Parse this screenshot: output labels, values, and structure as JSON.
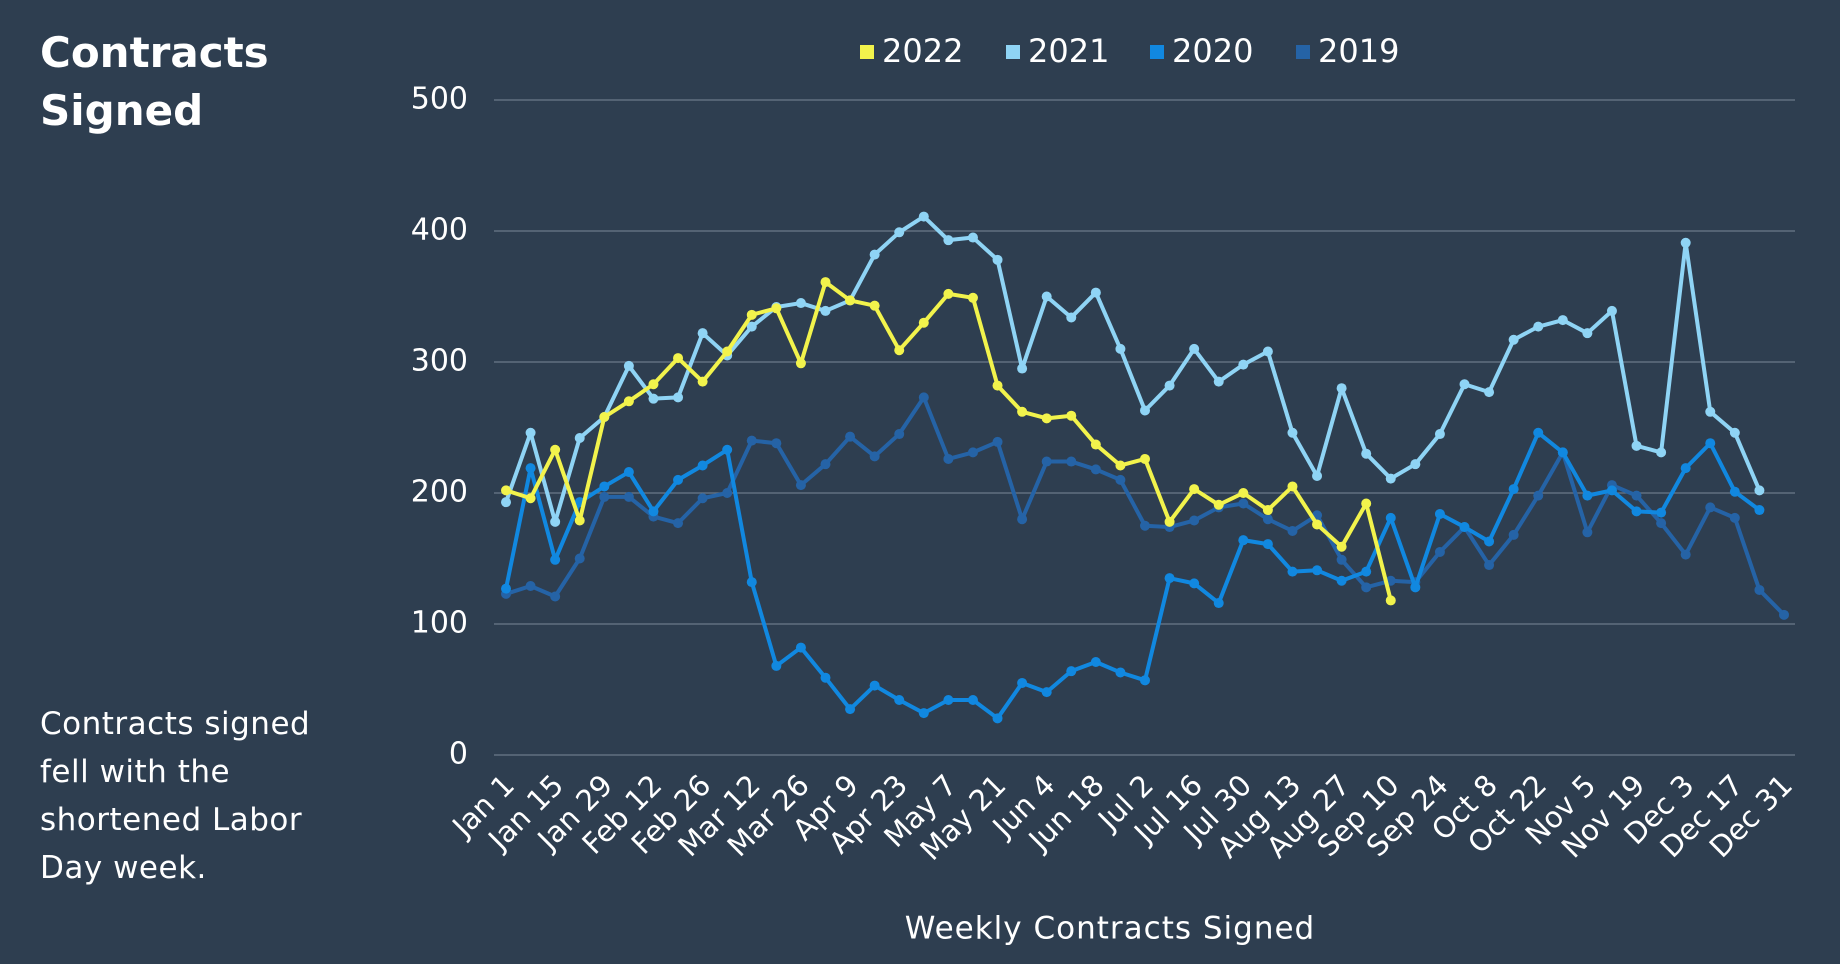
{
  "chart_data": {
    "type": "line",
    "title": "Contracts Signed",
    "annotation": "Contracts signed fell with the shortened Labor Day week.",
    "x_label": "Weekly Contracts Signed",
    "categories": [
      "Jan 1",
      null,
      "Jan 15",
      null,
      "Jan 29",
      null,
      "Feb 12",
      null,
      "Feb 26",
      null,
      "Mar 12",
      null,
      "Mar 26",
      null,
      "Apr 9",
      null,
      "Apr 23",
      null,
      "May 7",
      null,
      "May 21",
      null,
      "Jun 4",
      null,
      "Jun 18",
      null,
      "Jul 2",
      null,
      "Jul 16",
      null,
      "Jul 30",
      null,
      "Aug 13",
      null,
      "Aug 27",
      null,
      "Sep 10",
      null,
      "Sep 24",
      null,
      "Oct 8",
      null,
      "Oct 22",
      null,
      "Nov 5",
      null,
      "Nov 19",
      null,
      "Dec 3",
      null,
      "Dec 17",
      null,
      "Dec 31"
    ],
    "ylim": [
      0,
      500
    ],
    "yticks": [
      0,
      100,
      200,
      300,
      400,
      500
    ],
    "grid": true,
    "legend": "top",
    "series": [
      {
        "name": "2022",
        "color": "#f2f34c",
        "values": [
          202,
          196,
          233,
          179,
          258,
          270,
          283,
          303,
          285,
          308,
          336,
          341,
          299,
          361,
          347,
          343,
          309,
          330,
          352,
          349,
          282,
          262,
          257,
          259,
          237,
          221,
          226,
          178,
          203,
          191,
          200,
          187,
          205,
          176,
          159,
          192,
          118,
          null,
          null,
          null,
          null,
          null,
          null,
          null,
          null,
          null,
          null,
          null,
          null,
          null,
          null,
          null,
          null
        ]
      },
      {
        "name": "2021",
        "color": "#8fd4f5",
        "values": [
          193,
          246,
          178,
          242,
          258,
          297,
          272,
          273,
          322,
          305,
          327,
          342,
          345,
          339,
          347,
          382,
          399,
          411,
          393,
          395,
          378,
          295,
          350,
          334,
          353,
          310,
          263,
          282,
          310,
          285,
          298,
          308,
          246,
          213,
          280,
          230,
          211,
          222,
          245,
          283,
          277,
          317,
          327,
          332,
          322,
          339,
          236,
          231,
          391,
          262,
          246,
          202,
          null
        ]
      },
      {
        "name": "2020",
        "color": "#1188e0",
        "values": [
          127,
          219,
          149,
          193,
          205,
          216,
          186,
          210,
          221,
          233,
          132,
          68,
          82,
          59,
          35,
          53,
          42,
          32,
          42,
          42,
          28,
          55,
          48,
          64,
          71,
          63,
          57,
          135,
          131,
          116,
          164,
          161,
          140,
          141,
          133,
          140,
          181,
          128,
          184,
          174,
          163,
          203,
          246,
          231,
          198,
          202,
          186,
          185,
          219,
          238,
          201,
          187,
          null
        ]
      },
      {
        "name": "2019",
        "color": "#2563a6",
        "values": [
          123,
          129,
          121,
          150,
          197,
          197,
          182,
          177,
          196,
          200,
          240,
          238,
          206,
          222,
          243,
          228,
          245,
          273,
          226,
          231,
          239,
          180,
          224,
          224,
          218,
          210,
          175,
          174,
          179,
          189,
          192,
          180,
          171,
          183,
          149,
          128,
          133,
          132,
          155,
          174,
          145,
          168,
          198,
          231,
          170,
          206,
          198,
          177,
          153,
          189,
          181,
          126,
          107
        ]
      }
    ]
  }
}
